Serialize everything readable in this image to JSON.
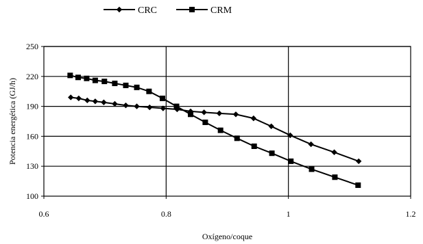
{
  "chart_data": {
    "type": "line",
    "title": "",
    "xlabel": "Oxígeno/coque",
    "ylabel": "Potencia energética  (GJ/h)",
    "xlim": [
      0.6,
      1.2
    ],
    "ylim": [
      100,
      250
    ],
    "x_ticks": [
      0.6,
      0.8,
      1,
      1.2
    ],
    "x_tick_labels": [
      "0.6",
      "0.8",
      "1",
      "1.2"
    ],
    "y_ticks": [
      100,
      130,
      160,
      190,
      220,
      250
    ],
    "y_tick_labels": [
      "100",
      "130",
      "160",
      "190",
      "220",
      "250"
    ],
    "x_grid_lines": [
      0.8,
      1.0
    ],
    "y_grid_lines": [
      130,
      160,
      190,
      220,
      250
    ],
    "legend_position": "top-center",
    "series": [
      {
        "name": "CRC",
        "marker": "diamond",
        "color": "#000000",
        "x": [
          0.644,
          0.657,
          0.671,
          0.684,
          0.698,
          0.716,
          0.734,
          0.752,
          0.773,
          0.795,
          0.818,
          0.84,
          0.862,
          0.887,
          0.914,
          0.943,
          0.972,
          1.003,
          1.037,
          1.075,
          1.115
        ],
        "y": [
          199,
          198,
          196,
          195,
          194,
          192.5,
          191,
          190,
          189,
          188,
          187,
          185,
          184,
          183,
          182,
          178,
          170,
          161,
          152,
          144,
          135
        ]
      },
      {
        "name": "CRM",
        "marker": "square",
        "color": "#000000",
        "x": [
          0.643,
          0.656,
          0.67,
          0.684,
          0.699,
          0.716,
          0.734,
          0.752,
          0.772,
          0.794,
          0.817,
          0.84,
          0.864,
          0.889,
          0.916,
          0.944,
          0.973,
          1.004,
          1.038,
          1.076,
          1.114
        ],
        "y": [
          221,
          219,
          218,
          216,
          215,
          213,
          211,
          209,
          205,
          198,
          190,
          182,
          174,
          166,
          158,
          150,
          143,
          135,
          127,
          119,
          111
        ]
      }
    ]
  }
}
